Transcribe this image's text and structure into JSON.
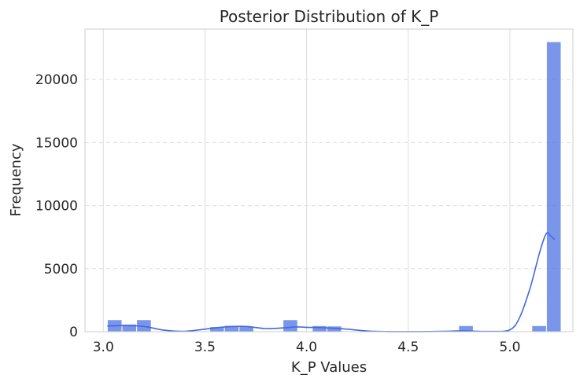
{
  "chart_data": {
    "type": "bar",
    "title": "Posterior Distribution of K_P",
    "xlabel": "K_P Values",
    "ylabel": "Frequency",
    "xlim": [
      2.91,
      5.31
    ],
    "ylim": [
      0,
      24000
    ],
    "xticks": [
      3.0,
      3.5,
      4.0,
      4.5,
      5.0
    ],
    "xtick_labels": [
      "3.0",
      "3.5",
      "4.0",
      "4.5",
      "5.0"
    ],
    "yticks": [
      0,
      5000,
      10000,
      15000,
      20000
    ],
    "ytick_labels": [
      "0",
      "5000",
      "10000",
      "15000",
      "20000"
    ],
    "grid": true,
    "bin_width": 0.072,
    "bins": [
      {
        "x0": 3.02,
        "x1": 3.092,
        "count": 950
      },
      {
        "x0": 3.092,
        "x1": 3.164,
        "count": 600
      },
      {
        "x0": 3.164,
        "x1": 3.236,
        "count": 950
      },
      {
        "x0": 3.236,
        "x1": 3.308,
        "count": 0
      },
      {
        "x0": 3.308,
        "x1": 3.38,
        "count": 0
      },
      {
        "x0": 3.38,
        "x1": 3.452,
        "count": 0
      },
      {
        "x0": 3.452,
        "x1": 3.524,
        "count": 0
      },
      {
        "x0": 3.524,
        "x1": 3.596,
        "count": 400
      },
      {
        "x0": 3.596,
        "x1": 3.668,
        "count": 500
      },
      {
        "x0": 3.668,
        "x1": 3.74,
        "count": 450
      },
      {
        "x0": 3.74,
        "x1": 3.812,
        "count": 0
      },
      {
        "x0": 3.812,
        "x1": 3.884,
        "count": 0
      },
      {
        "x0": 3.884,
        "x1": 3.956,
        "count": 950
      },
      {
        "x0": 3.956,
        "x1": 4.028,
        "count": 0
      },
      {
        "x0": 4.028,
        "x1": 4.1,
        "count": 480
      },
      {
        "x0": 4.1,
        "x1": 4.172,
        "count": 450
      },
      {
        "x0": 4.172,
        "x1": 4.244,
        "count": 0
      },
      {
        "x0": 4.244,
        "x1": 4.316,
        "count": 0
      },
      {
        "x0": 4.316,
        "x1": 4.388,
        "count": 0
      },
      {
        "x0": 4.388,
        "x1": 4.46,
        "count": 0
      },
      {
        "x0": 4.46,
        "x1": 4.532,
        "count": 0
      },
      {
        "x0": 4.532,
        "x1": 4.604,
        "count": 0
      },
      {
        "x0": 4.604,
        "x1": 4.676,
        "count": 0
      },
      {
        "x0": 4.676,
        "x1": 4.748,
        "count": 0
      },
      {
        "x0": 4.748,
        "x1": 4.82,
        "count": 480
      },
      {
        "x0": 4.82,
        "x1": 4.892,
        "count": 0
      },
      {
        "x0": 4.892,
        "x1": 4.964,
        "count": 0
      },
      {
        "x0": 4.964,
        "x1": 5.036,
        "count": 0
      },
      {
        "x0": 5.036,
        "x1": 5.108,
        "count": 0
      },
      {
        "x0": 5.108,
        "x1": 5.18,
        "count": 480
      },
      {
        "x0": 5.18,
        "x1": 5.252,
        "count": 23000
      }
    ],
    "kde": {
      "x": [
        3.02,
        3.1,
        3.2,
        3.3,
        3.4,
        3.5,
        3.55,
        3.6,
        3.7,
        3.8,
        3.9,
        3.95,
        4.0,
        4.1,
        4.2,
        4.3,
        4.4,
        4.5,
        4.6,
        4.7,
        4.75,
        4.8,
        4.9,
        5.0,
        5.05,
        5.1,
        5.15,
        5.18,
        5.2,
        5.22
      ],
      "y": [
        450,
        480,
        420,
        120,
        30,
        200,
        300,
        380,
        420,
        250,
        320,
        380,
        350,
        300,
        200,
        50,
        10,
        5,
        10,
        40,
        60,
        50,
        20,
        150,
        1200,
        3500,
        6500,
        7800,
        7600,
        7300
      ]
    },
    "bar_color": "#4169E1",
    "bar_opacity": 0.7,
    "kde_color": "#4169E1",
    "grid_color": "#DDDDDD",
    "spine_color": "#CCCCCC"
  }
}
